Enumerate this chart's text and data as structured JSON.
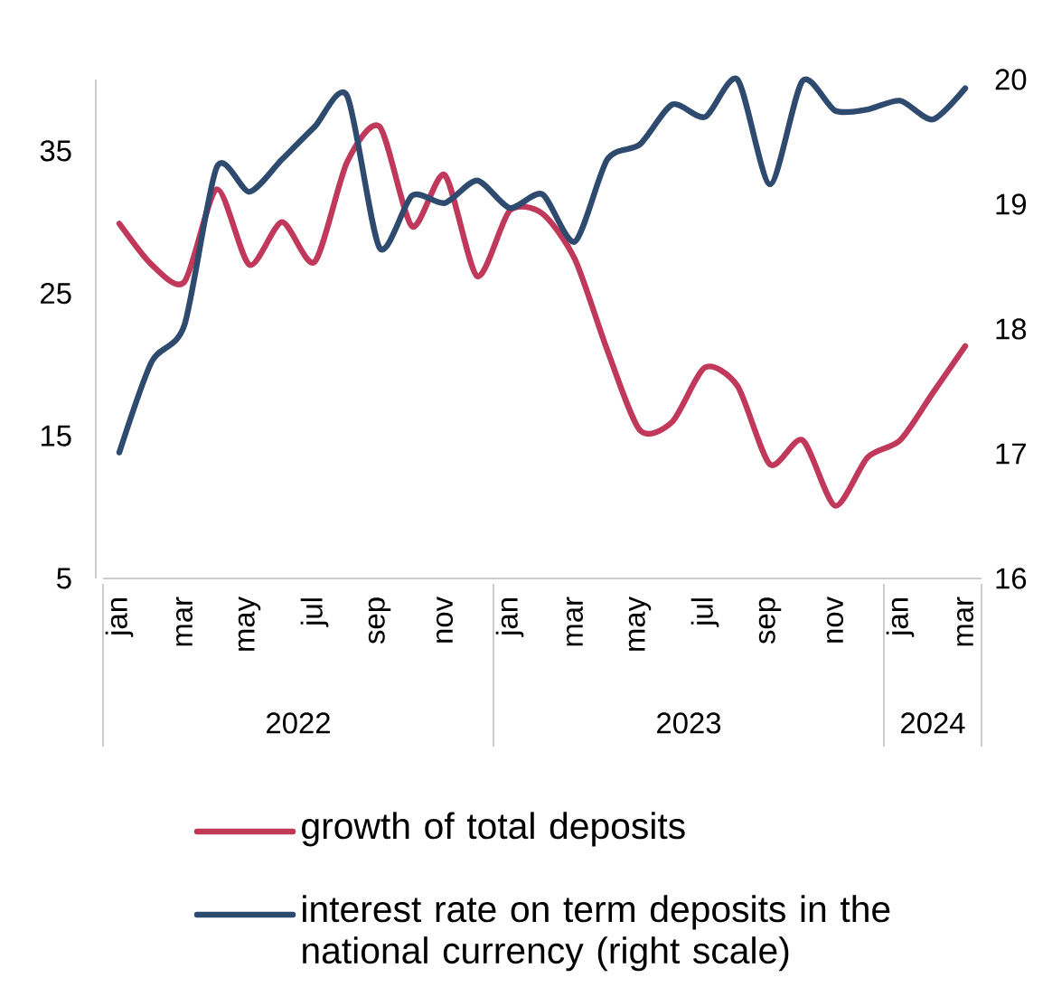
{
  "chart_data": {
    "type": "line",
    "categories": [
      "jan",
      null,
      "mar",
      null,
      "may",
      null,
      "jul",
      null,
      "sep",
      null,
      "nov",
      null,
      "jan",
      null,
      "mar",
      null,
      "may",
      null,
      "jul",
      null,
      "sep",
      null,
      "nov",
      null,
      "jan",
      null,
      "mar"
    ],
    "series": [
      {
        "name": "growth of total deposits",
        "color": "#c0395a",
        "values": [
          29.9,
          27,
          25.8,
          32.3,
          27,
          30,
          27.2,
          34.2,
          36.7,
          29.7,
          33.3,
          26.2,
          30.8,
          30.6,
          27.4,
          21,
          15.4,
          16,
          19.8,
          18.5,
          13,
          14.7,
          10.1,
          13.5,
          14.7,
          18,
          21.3
        ]
      },
      {
        "name": "interest rate on term deposits in the national currency (right scale)",
        "color": "#2e4a6e",
        "axis": "y2",
        "values": [
          17.01,
          17.74,
          18.03,
          19.3,
          19.1,
          19.36,
          19.62,
          19.87,
          18.65,
          19.07,
          19.01,
          19.19,
          18.97,
          19.08,
          18.7,
          19.36,
          19.48,
          19.8,
          19.7,
          20.0,
          19.16,
          19.99,
          19.75,
          19.76,
          19.83,
          19.68,
          19.93
        ]
      }
    ],
    "ylim": [
      5,
      40
    ],
    "yticks": [
      5,
      15,
      25,
      35
    ],
    "y2lim": [
      16,
      20
    ],
    "y2ticks": [
      16,
      17,
      18,
      19,
      20
    ],
    "annotations": [
      "2022",
      "2023",
      "2024"
    ],
    "legend": "bottom",
    "marker": "none",
    "line_style": "solid",
    "grid": false
  }
}
